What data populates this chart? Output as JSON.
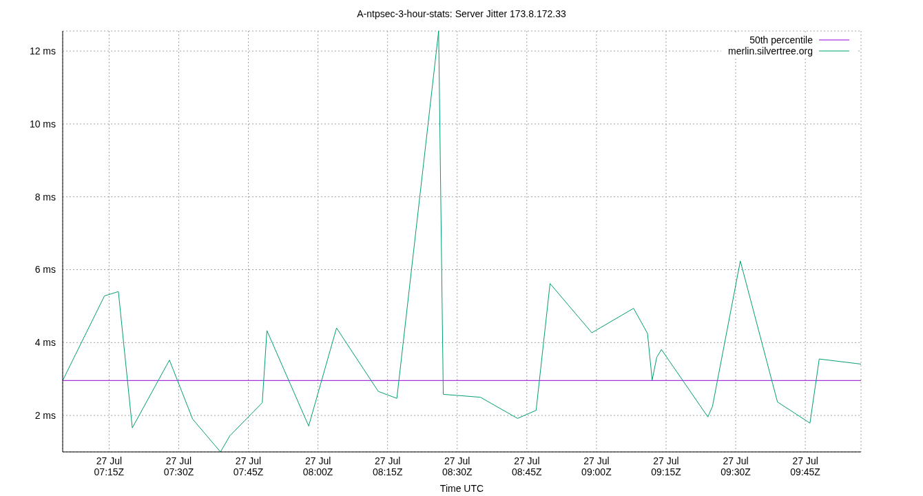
{
  "chart_data": {
    "type": "line",
    "title": "A-ntpsec-3-hour-stats: Server Jitter 173.8.172.33",
    "xlabel": "Time UTC",
    "xlim": [
      "--07-27T07:05",
      "--07-27T09:57"
    ],
    "xticks": [
      {
        "value": "--07-27T07:15",
        "label": "27 Jul\n07:15Z"
      },
      {
        "value": "--07-27T07:30",
        "label": "27 Jul\n07:30Z"
      },
      {
        "value": "--07-27T07:45",
        "label": "27 Jul\n07:45Z"
      },
      {
        "value": "--07-27T08:00",
        "label": "27 Jul\n08:00Z"
      },
      {
        "value": "--07-27T08:15",
        "label": "27 Jul\n08:15Z"
      },
      {
        "value": "--07-27T08:30",
        "label": "27 Jul\n08:30Z"
      },
      {
        "value": "--07-27T08:45",
        "label": "27 Jul\n08:45Z"
      },
      {
        "value": "--07-27T09:00",
        "label": "27 Jul\n09:00Z"
      },
      {
        "value": "--07-27T09:15",
        "label": "27 Jul\n09:15Z"
      },
      {
        "value": "--07-27T09:30",
        "label": "27 Jul\n09:30Z"
      },
      {
        "value": "--07-27T09:45",
        "label": "27 Jul\n09:45Z"
      }
    ],
    "ylim": [
      1,
      12.55
    ],
    "yticks": [
      {
        "value": 2,
        "label": "2 ms"
      },
      {
        "value": 4,
        "label": "4 ms"
      },
      {
        "value": 6,
        "label": "6 ms"
      },
      {
        "value": 8,
        "label": "8 ms"
      },
      {
        "value": 10,
        "label": "10 ms"
      },
      {
        "value": 12,
        "label": "12 ms"
      }
    ],
    "series": [
      {
        "name": "50th percentile",
        "color": "#9400d3",
        "x": [
          "--07-27T07:05",
          "--07-27T09:57"
        ],
        "values": [
          2.96,
          2.96
        ]
      },
      {
        "name": "merlin.silvertree.org",
        "color": "#009e73",
        "x": [
          "--07-27T07:05",
          "--07-27T07:14",
          "--07-27T07:17",
          "--07-27T07:20",
          "--07-27T07:28",
          "--07-27T07:33",
          "--07-27T07:39",
          "--07-27T07:41",
          "--07-27T07:48",
          "--07-27T07:49",
          "--07-27T07:58",
          "--07-27T08:04",
          "--07-27T08:13",
          "--07-27T08:17",
          "--07-27T08:26",
          "--07-27T08:27",
          "--07-27T08:35",
          "--07-27T08:43",
          "--07-27T08:47",
          "--07-27T08:50",
          "--07-27T08:59",
          "--07-27T09:08",
          "--07-27T09:11",
          "--07-27T09:12",
          "--07-27T09:13",
          "--07-27T09:14",
          "--07-27T09:24",
          "--07-27T09:25",
          "--07-27T09:31",
          "--07-27T09:39",
          "--07-27T09:46",
          "--07-27T09:48",
          "--07-27T09:57"
        ],
        "values": [
          2.96,
          5.28,
          5.4,
          1.66,
          3.52,
          1.9,
          1.0,
          1.44,
          2.35,
          4.33,
          1.71,
          4.4,
          2.66,
          2.47,
          12.55,
          2.58,
          2.5,
          1.92,
          2.14,
          5.62,
          4.27,
          4.94,
          4.25,
          2.97,
          3.6,
          3.81,
          1.96,
          2.25,
          6.24,
          2.37,
          1.79,
          3.55,
          3.41
        ]
      }
    ],
    "grid": true,
    "legend": "top right",
    "marker": "none",
    "line_style": "solid"
  }
}
